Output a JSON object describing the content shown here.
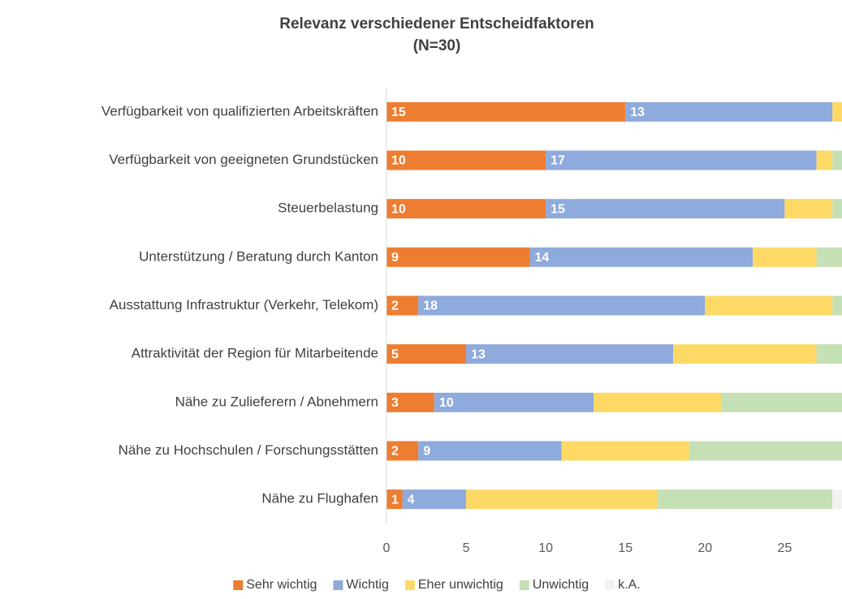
{
  "chart_data": {
    "type": "stacked-bar-horizontal",
    "title": "Relevanz verschiedener Entscheidfaktoren",
    "subtitle": "(N=30)",
    "categories": [
      "Verfügbarkeit von qualifizierten Arbeitskräften",
      "Verfügbarkeit von geeigneten Grundstücken",
      "Steuerbelastung",
      "Unterstützung / Beratung durch Kanton",
      "Ausstattung Infrastruktur (Verkehr, Telekom)",
      "Attraktivität der Region für Mitarbeitende",
      "Nähe zu Zulieferern / Abnehmern",
      "Nähe zu Hochschulen / Forschungsstätten",
      "Nähe zu Flughafen"
    ],
    "series": [
      {
        "name": "Sehr wichtig",
        "color": "#ed7d31",
        "values": [
          15,
          10,
          10,
          9,
          2,
          5,
          3,
          2,
          1
        ],
        "labels": true
      },
      {
        "name": "Wichtig",
        "color": "#8faadc",
        "values": [
          13,
          17,
          15,
          14,
          18,
          13,
          10,
          9,
          4
        ],
        "labels": true
      },
      {
        "name": "Eher unwichtig",
        "color": "#ffd966",
        "values": [
          1,
          1,
          3,
          4,
          8,
          9,
          8,
          8,
          12
        ],
        "labels": false
      },
      {
        "name": "Unwichtig",
        "color": "#c5e0b4",
        "values": [
          1,
          2,
          2,
          3,
          2,
          3,
          9,
          11,
          11
        ],
        "labels": false
      },
      {
        "name": "k.A.",
        "color": "#f2f2f2",
        "values": [
          0,
          0,
          0,
          0,
          0,
          0,
          0,
          0,
          2
        ],
        "labels": false
      }
    ],
    "xlim": [
      0,
      28.6
    ],
    "xticks": [
      0,
      5,
      10,
      15,
      20,
      25
    ],
    "legend": "bottom"
  }
}
